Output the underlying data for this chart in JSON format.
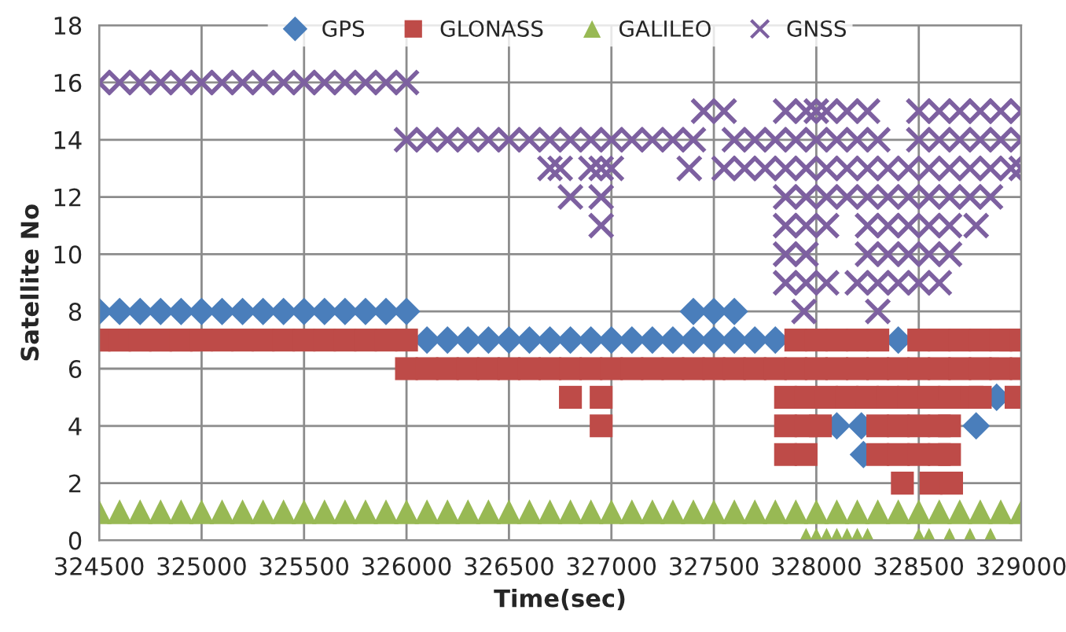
{
  "chart_data": {
    "type": "scatter",
    "xlabel": "Time(sec)",
    "ylabel": "Satellite No",
    "xlim": [
      324500,
      329000
    ],
    "xticks": [
      324500,
      325000,
      325500,
      326000,
      326500,
      327000,
      327500,
      328000,
      328500,
      329000
    ],
    "ylim": [
      0,
      18
    ],
    "yticks": [
      0,
      2,
      4,
      6,
      8,
      10,
      12,
      14,
      16,
      18
    ],
    "grid": true,
    "legend": "top",
    "series": [
      {
        "name": "GPS",
        "color": "#4a7ebb",
        "marker": "diamond",
        "x": [
          324500,
          324600,
          324700,
          324800,
          324900,
          325000,
          325100,
          325200,
          325300,
          325400,
          325500,
          325600,
          325700,
          325800,
          325900,
          326000,
          326100,
          326200,
          326300,
          326400,
          326500,
          326600,
          326700,
          326800,
          326900,
          327000,
          327100,
          327200,
          327300,
          327400,
          327500,
          327600,
          327700,
          327800,
          328400,
          327400,
          327500,
          327600,
          328100,
          328220,
          328780,
          328230,
          328880
        ],
        "values": [
          8,
          8,
          8,
          8,
          8,
          8,
          8,
          8,
          8,
          8,
          8,
          8,
          8,
          8,
          8,
          8,
          7,
          7,
          7,
          7,
          7,
          7,
          7,
          7,
          7,
          7,
          7,
          7,
          7,
          7,
          7,
          7,
          7,
          7,
          7,
          8,
          8,
          8,
          4,
          4,
          4,
          3,
          5
        ]
      },
      {
        "name": "GLONASS",
        "color": "#be4b48",
        "marker": "square",
        "x": [
          324500,
          324600,
          324700,
          324800,
          324900,
          325000,
          325100,
          325200,
          325300,
          325400,
          325500,
          325600,
          325700,
          325800,
          325900,
          326000,
          327900,
          328000,
          328100,
          328200,
          328300,
          328500,
          328600,
          328700,
          328800,
          328900,
          329000,
          326000,
          326100,
          326200,
          326300,
          326400,
          326500,
          326600,
          326700,
          326800,
          326900,
          327000,
          327100,
          327200,
          327300,
          327400,
          327500,
          327600,
          327700,
          327800,
          327900,
          328000,
          328100,
          328200,
          328300,
          328400,
          328500,
          328600,
          328700,
          328800,
          328900,
          329000,
          326800,
          326950,
          327850,
          327950,
          328050,
          328150,
          328250,
          328350,
          328450,
          328550,
          328650,
          328760,
          328800,
          328975,
          326950,
          327850,
          327950,
          328020,
          328300,
          328400,
          328500,
          328600,
          328650,
          327850,
          327950,
          328300,
          328400,
          328500,
          328600,
          328650,
          328420,
          328560,
          328660
        ],
        "values": [
          7,
          7,
          7,
          7,
          7,
          7,
          7,
          7,
          7,
          7,
          7,
          7,
          7,
          7,
          7,
          7,
          7,
          7,
          7,
          7,
          7,
          7,
          7,
          7,
          7,
          7,
          7,
          6,
          6,
          6,
          6,
          6,
          6,
          6,
          6,
          6,
          6,
          6,
          6,
          6,
          6,
          6,
          6,
          6,
          6,
          6,
          6,
          6,
          6,
          6,
          6,
          6,
          6,
          6,
          6,
          6,
          6,
          6,
          5,
          5,
          5,
          5,
          5,
          5,
          5,
          5,
          5,
          5,
          5,
          5,
          5,
          5,
          4,
          4,
          4,
          4,
          4,
          4,
          4,
          4,
          4,
          3,
          3,
          3,
          3,
          3,
          3,
          3,
          2,
          2,
          2
        ]
      },
      {
        "name": "GALILEO",
        "color": "#98b954",
        "marker": "triangle",
        "x": [
          324500,
          324600,
          324700,
          324800,
          324900,
          325000,
          325100,
          325200,
          325300,
          325400,
          325500,
          325600,
          325700,
          325800,
          325900,
          326000,
          326100,
          326200,
          326300,
          326400,
          326500,
          326600,
          326700,
          326800,
          326900,
          327000,
          327100,
          327200,
          327300,
          327400,
          327500,
          327600,
          327700,
          327800,
          327900,
          328000,
          328100,
          328200,
          328300,
          328400,
          328500,
          328600,
          328700,
          328800,
          328900,
          329000,
          327950,
          328000,
          328050,
          328100,
          328150,
          328200,
          328250,
          328500,
          328550,
          328650,
          328750,
          328850
        ],
        "values": [
          1,
          1,
          1,
          1,
          1,
          1,
          1,
          1,
          1,
          1,
          1,
          1,
          1,
          1,
          1,
          1,
          1,
          1,
          1,
          1,
          1,
          1,
          1,
          1,
          1,
          1,
          1,
          1,
          1,
          1,
          1,
          1,
          1,
          1,
          1,
          1,
          1,
          1,
          1,
          1,
          1,
          1,
          1,
          1,
          1,
          1,
          0,
          0,
          0,
          0,
          0,
          0,
          0,
          0,
          0,
          0,
          0,
          0
        ]
      },
      {
        "name": "GNSS",
        "color": "#7d60a0",
        "marker": "cross",
        "x": [
          324500,
          324600,
          324700,
          324800,
          324900,
          325000,
          325100,
          325200,
          325300,
          325400,
          325500,
          325600,
          325700,
          325800,
          325900,
          326000,
          326000,
          326100,
          326200,
          326300,
          326400,
          326500,
          326600,
          326700,
          326800,
          326900,
          327000,
          327100,
          327200,
          327300,
          327400,
          327600,
          327700,
          327800,
          327900,
          328000,
          328100,
          328200,
          328300,
          328500,
          328600,
          328700,
          328800,
          328900,
          329000,
          327450,
          327550,
          327850,
          327950,
          328000,
          328050,
          328150,
          328250,
          328500,
          328600,
          328700,
          328800,
          328900,
          329000,
          326700,
          326750,
          326900,
          326950,
          327000,
          327380,
          327550,
          327650,
          327750,
          327850,
          327950,
          328050,
          328150,
          328250,
          328350,
          328450,
          328550,
          328650,
          328750,
          328850,
          328950,
          329000,
          326800,
          326950,
          327850,
          327950,
          328050,
          328150,
          328250,
          328350,
          328450,
          328550,
          328650,
          328750,
          328850,
          326950,
          327850,
          327950,
          328050,
          328250,
          328350,
          328450,
          328550,
          328650,
          328780,
          327850,
          327950,
          328250,
          328350,
          328450,
          328550,
          328650,
          327850,
          327950,
          328050,
          328200,
          328300,
          328400,
          328500,
          328600,
          327940,
          328300
        ],
        "values": [
          16,
          16,
          16,
          16,
          16,
          16,
          16,
          16,
          16,
          16,
          16,
          16,
          16,
          16,
          16,
          16,
          14,
          14,
          14,
          14,
          14,
          14,
          14,
          14,
          14,
          14,
          14,
          14,
          14,
          14,
          14,
          14,
          14,
          14,
          14,
          14,
          14,
          14,
          14,
          14,
          14,
          14,
          14,
          14,
          14,
          15,
          15,
          15,
          15,
          15,
          15,
          15,
          15,
          15,
          15,
          15,
          15,
          15,
          15,
          13,
          13,
          13,
          13,
          13,
          13,
          13,
          13,
          13,
          13,
          13,
          13,
          13,
          13,
          13,
          13,
          13,
          13,
          13,
          13,
          13,
          13,
          12,
          12,
          12,
          12,
          12,
          12,
          12,
          12,
          12,
          12,
          12,
          12,
          12,
          11,
          11,
          11,
          11,
          11,
          11,
          11,
          11,
          11,
          11,
          10,
          10,
          10,
          10,
          10,
          10,
          10,
          9,
          9,
          9,
          9,
          9,
          9,
          9,
          9,
          8,
          8
        ]
      }
    ]
  }
}
